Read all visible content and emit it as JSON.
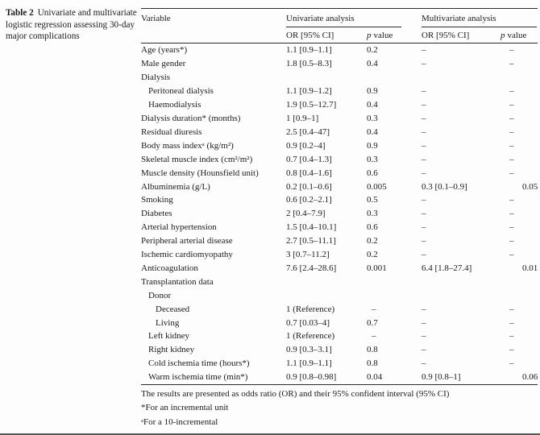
{
  "caption": {
    "label": "Table 2",
    "text": "Univariate and multivariate logistic regression assessing 30-day major complications"
  },
  "table": {
    "header": {
      "variable": "Variable",
      "group_univariate": "Univariate analysis",
      "group_multivariate": "Multivariate analysis",
      "or_ci": "OR [95% CI]",
      "p_italic": "p",
      "p_rest": "value"
    },
    "rows": [
      {
        "variable": "Age (years*)",
        "indent": 0,
        "u_or": "1.1 [0.9–1.1]",
        "u_p": "0.2",
        "m_or": "–",
        "m_p": "–"
      },
      {
        "variable": "Male gender",
        "indent": 0,
        "u_or": "1.8 [0.5–8.3]",
        "u_p": "0.4",
        "m_or": "–",
        "m_p": "–"
      },
      {
        "variable": "Dialysis",
        "indent": 0,
        "u_or": "",
        "u_p": "",
        "m_or": "",
        "m_p": ""
      },
      {
        "variable": "Peritoneal dialysis",
        "indent": 1,
        "u_or": "1.1 [0.9–1.2]",
        "u_p": "0.9",
        "m_or": "–",
        "m_p": "–"
      },
      {
        "variable": "Haemodialysis",
        "indent": 1,
        "u_or": "1.9 [0.5–12.7]",
        "u_p": "0.4",
        "m_or": "–",
        "m_p": "–"
      },
      {
        "variable": "Dialysis duration* (months)",
        "indent": 0,
        "u_or": "1 [0.9–1]",
        "u_p": "0.3",
        "m_or": "–",
        "m_p": "–"
      },
      {
        "variable": "Residual diuresis",
        "indent": 0,
        "u_or": "2.5 [0.4–47]",
        "u_p": "0.4",
        "m_or": "–",
        "m_p": "–"
      },
      {
        "variable": "Body mass indexᵃ (kg/m²)",
        "indent": 0,
        "u_or": "0.9 [0.2–4]",
        "u_p": "0.9",
        "m_or": "–",
        "m_p": "–"
      },
      {
        "variable": "Skeletal muscle index (cm²/m²)",
        "indent": 0,
        "u_or": "0.7 [0.4–1.3]",
        "u_p": "0.3",
        "m_or": "–",
        "m_p": "–"
      },
      {
        "variable": "Muscle density (Hounsfield unit)",
        "indent": 0,
        "u_or": "0.8 [0.4–1.6]",
        "u_p": "0.6",
        "m_or": "–",
        "m_p": "–"
      },
      {
        "variable": "Albuminemia (g/L)",
        "indent": 0,
        "u_or": "0.2 [0.1–0.6]",
        "u_p": "0.005",
        "m_or": "0.3 [0.1–0.9]",
        "m_p": "0.05"
      },
      {
        "variable": "Smoking",
        "indent": 0,
        "u_or": "0.6 [0.2–2.1]",
        "u_p": "0.5",
        "m_or": "–",
        "m_p": "–"
      },
      {
        "variable": "Diabetes",
        "indent": 0,
        "u_or": "2 [0.4–7.9]",
        "u_p": "0.3",
        "m_or": "–",
        "m_p": "–"
      },
      {
        "variable": "Arterial hypertension",
        "indent": 0,
        "u_or": "1.5 [0.4–10.1]",
        "u_p": "0.6",
        "m_or": "–",
        "m_p": "–"
      },
      {
        "variable": "Peripheral arterial disease",
        "indent": 0,
        "u_or": "2.7 [0.5–11.1]",
        "u_p": "0.2",
        "m_or": "–",
        "m_p": "–"
      },
      {
        "variable": "Ischemic cardiomyopathy",
        "indent": 0,
        "u_or": "3 [0.7–11.2]",
        "u_p": "0.2",
        "m_or": "–",
        "m_p": "–"
      },
      {
        "variable": "Anticoagulation",
        "indent": 0,
        "u_or": "7.6 [2.4–28.6]",
        "u_p": "0.001",
        "m_or": "6.4 [1.8–27.4]",
        "m_p": "0.01"
      },
      {
        "variable": "Transplantation data",
        "indent": 0,
        "u_or": "",
        "u_p": "",
        "m_or": "",
        "m_p": ""
      },
      {
        "variable": "Donor",
        "indent": 1,
        "u_or": "",
        "u_p": "",
        "m_or": "",
        "m_p": ""
      },
      {
        "variable": "Deceased",
        "indent": 2,
        "u_or": "1 (Reference)",
        "u_p": "–",
        "m_or": "–",
        "m_p": "–"
      },
      {
        "variable": "Living",
        "indent": 2,
        "u_or": "0.7 [0.03–4]",
        "u_p": "0.7",
        "m_or": "–",
        "m_p": "–"
      },
      {
        "variable": "Left kidney",
        "indent": 1,
        "u_or": "1 (Reference)",
        "u_p": "–",
        "m_or": "–",
        "m_p": "–"
      },
      {
        "variable": "Right kidney",
        "indent": 1,
        "u_or": "0.9 [0.3–3.1]",
        "u_p": "0.8",
        "m_or": "–",
        "m_p": "–"
      },
      {
        "variable": "Cold ischemia time (hours*)",
        "indent": 1,
        "u_or": "1.1 [0.9–1.1]",
        "u_p": "0.8",
        "m_or": "–",
        "m_p": "–"
      },
      {
        "variable": "Warm ischemia time (min*)",
        "indent": 1,
        "u_or": "0.9 [0.8–0.98]",
        "u_p": "0.04",
        "m_or": "0.9 [0.8–1]",
        "m_p": "0.06"
      }
    ]
  },
  "footnotes": [
    "The results are presented as odds ratio (OR) and their 95% confident interval (95% CI)",
    "*For an incremental unit",
    "ᵃFor a 10-incremental"
  ]
}
